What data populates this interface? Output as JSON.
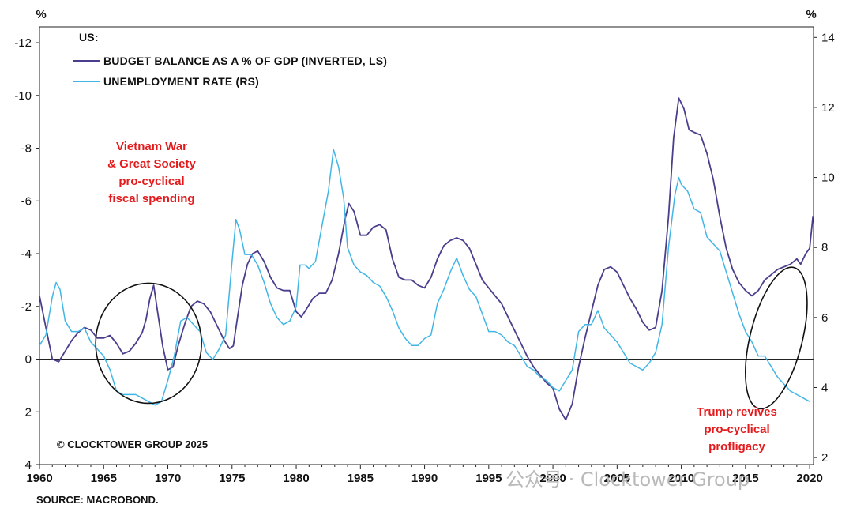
{
  "chart_data": {
    "type": "line",
    "title": "US:",
    "left_axis": {
      "unit": "%",
      "ylim": [
        4,
        -12.6
      ],
      "ticks": [
        -12,
        -10,
        -8,
        -6,
        -4,
        -2,
        0,
        2,
        4
      ],
      "inverted": true
    },
    "right_axis": {
      "unit": "%",
      "ylim": [
        1.8,
        14.3
      ],
      "ticks": [
        2,
        4,
        6,
        8,
        10,
        12,
        14
      ]
    },
    "x_axis": {
      "xlim": [
        1960,
        2020.3
      ],
      "ticks": [
        1960,
        1965,
        1970,
        1975,
        1980,
        1985,
        1990,
        1995,
        2000,
        2005,
        2010,
        2015,
        2020
      ]
    },
    "legend": {
      "placement": "top-left"
    },
    "series": [
      {
        "name": "BUDGET BALANCE AS A % OF GDP (INVERTED, LS)",
        "axis": "left",
        "color": "#4a3f8c",
        "points": [
          [
            1960,
            -2.4
          ],
          [
            1960.5,
            -1.2
          ],
          [
            1961,
            0
          ],
          [
            1961.5,
            0.1
          ],
          [
            1962,
            -0.3
          ],
          [
            1962.5,
            -0.7
          ],
          [
            1963,
            -1
          ],
          [
            1963.5,
            -1.2
          ],
          [
            1964,
            -1.1
          ],
          [
            1964.5,
            -0.8
          ],
          [
            1965,
            -0.8
          ],
          [
            1965.5,
            -0.9
          ],
          [
            1966,
            -0.6
          ],
          [
            1966.5,
            -0.2
          ],
          [
            1967,
            -0.3
          ],
          [
            1967.5,
            -0.6
          ],
          [
            1968,
            -1
          ],
          [
            1968.3,
            -1.5
          ],
          [
            1968.6,
            -2.3
          ],
          [
            1968.9,
            -2.8
          ],
          [
            1969.2,
            -1.8
          ],
          [
            1969.6,
            -0.5
          ],
          [
            1970,
            0.4
          ],
          [
            1970.4,
            0.3
          ],
          [
            1970.8,
            -0.5
          ],
          [
            1971.3,
            -1.3
          ],
          [
            1971.8,
            -2
          ],
          [
            1972.3,
            -2.2
          ],
          [
            1972.8,
            -2.1
          ],
          [
            1973.3,
            -1.8
          ],
          [
            1973.8,
            -1.3
          ],
          [
            1974.4,
            -0.7
          ],
          [
            1974.8,
            -0.4
          ],
          [
            1975.1,
            -0.5
          ],
          [
            1975.4,
            -1.5
          ],
          [
            1975.8,
            -2.8
          ],
          [
            1976.2,
            -3.6
          ],
          [
            1976.6,
            -4
          ],
          [
            1977,
            -4.1
          ],
          [
            1977.5,
            -3.7
          ],
          [
            1978,
            -3.1
          ],
          [
            1978.5,
            -2.7
          ],
          [
            1979,
            -2.6
          ],
          [
            1979.5,
            -2.6
          ],
          [
            1980,
            -1.8
          ],
          [
            1980.4,
            -1.6
          ],
          [
            1980.8,
            -1.9
          ],
          [
            1981.3,
            -2.3
          ],
          [
            1981.8,
            -2.5
          ],
          [
            1982.3,
            -2.5
          ],
          [
            1982.8,
            -3
          ],
          [
            1983.3,
            -4
          ],
          [
            1983.8,
            -5.3
          ],
          [
            1984.1,
            -5.9
          ],
          [
            1984.5,
            -5.6
          ],
          [
            1985,
            -4.7
          ],
          [
            1985.5,
            -4.7
          ],
          [
            1986,
            -5
          ],
          [
            1986.5,
            -5.1
          ],
          [
            1987,
            -4.9
          ],
          [
            1987.5,
            -3.8
          ],
          [
            1988,
            -3.1
          ],
          [
            1988.5,
            -3
          ],
          [
            1989,
            -3
          ],
          [
            1989.5,
            -2.8
          ],
          [
            1990,
            -2.7
          ],
          [
            1990.5,
            -3.1
          ],
          [
            1991,
            -3.8
          ],
          [
            1991.5,
            -4.3
          ],
          [
            1992,
            -4.5
          ],
          [
            1992.5,
            -4.6
          ],
          [
            1993,
            -4.5
          ],
          [
            1993.5,
            -4.2
          ],
          [
            1994,
            -3.6
          ],
          [
            1994.5,
            -3
          ],
          [
            1995,
            -2.7
          ],
          [
            1995.5,
            -2.4
          ],
          [
            1996,
            -2.1
          ],
          [
            1996.5,
            -1.6
          ],
          [
            1997,
            -1.1
          ],
          [
            1997.5,
            -0.6
          ],
          [
            1998,
            -0.1
          ],
          [
            1998.5,
            0.3
          ],
          [
            1999,
            0.6
          ],
          [
            1999.5,
            0.9
          ],
          [
            2000,
            1.1
          ],
          [
            2000.5,
            1.9
          ],
          [
            2001,
            2.3
          ],
          [
            2001.5,
            1.7
          ],
          [
            2002,
            0.3
          ],
          [
            2002.5,
            -0.8
          ],
          [
            2003,
            -1.8
          ],
          [
            2003.5,
            -2.8
          ],
          [
            2004,
            -3.4
          ],
          [
            2004.5,
            -3.5
          ],
          [
            2005,
            -3.3
          ],
          [
            2005.5,
            -2.8
          ],
          [
            2006,
            -2.3
          ],
          [
            2006.5,
            -1.9
          ],
          [
            2007,
            -1.4
          ],
          [
            2007.5,
            -1.1
          ],
          [
            2008,
            -1.2
          ],
          [
            2008.5,
            -2.6
          ],
          [
            2009,
            -5.4
          ],
          [
            2009.4,
            -8.4
          ],
          [
            2009.8,
            -9.9
          ],
          [
            2010.2,
            -9.5
          ],
          [
            2010.6,
            -8.7
          ],
          [
            2011,
            -8.6
          ],
          [
            2011.5,
            -8.5
          ],
          [
            2012,
            -7.8
          ],
          [
            2012.5,
            -6.8
          ],
          [
            2013,
            -5.4
          ],
          [
            2013.5,
            -4.2
          ],
          [
            2014,
            -3.4
          ],
          [
            2014.5,
            -2.9
          ],
          [
            2015,
            -2.6
          ],
          [
            2015.5,
            -2.4
          ],
          [
            2016,
            -2.6
          ],
          [
            2016.5,
            -3
          ],
          [
            2017,
            -3.2
          ],
          [
            2017.5,
            -3.4
          ],
          [
            2018,
            -3.5
          ],
          [
            2018.5,
            -3.6
          ],
          [
            2019,
            -3.8
          ],
          [
            2019.3,
            -3.6
          ],
          [
            2019.7,
            -4
          ],
          [
            2020,
            -4.2
          ],
          [
            2020.25,
            -5.4
          ]
        ]
      },
      {
        "name": "UNEMPLOYMENT RATE (RS)",
        "axis": "right",
        "color": "#41b6e6",
        "points": [
          [
            1960,
            5.2
          ],
          [
            1960.5,
            5.5
          ],
          [
            1961,
            6.6
          ],
          [
            1961.3,
            7
          ],
          [
            1961.6,
            6.8
          ],
          [
            1962,
            5.9
          ],
          [
            1962.5,
            5.6
          ],
          [
            1963,
            5.6
          ],
          [
            1963.5,
            5.7
          ],
          [
            1964,
            5.3
          ],
          [
            1964.5,
            5.1
          ],
          [
            1965,
            4.9
          ],
          [
            1965.5,
            4.5
          ],
          [
            1966,
            3.9
          ],
          [
            1966.5,
            3.8
          ],
          [
            1967,
            3.8
          ],
          [
            1967.5,
            3.8
          ],
          [
            1968,
            3.7
          ],
          [
            1968.5,
            3.6
          ],
          [
            1969,
            3.5
          ],
          [
            1969.5,
            3.6
          ],
          [
            1970,
            4.2
          ],
          [
            1970.5,
            4.9
          ],
          [
            1971,
            5.9
          ],
          [
            1971.5,
            6
          ],
          [
            1972,
            5.8
          ],
          [
            1972.5,
            5.6
          ],
          [
            1973,
            5
          ],
          [
            1973.5,
            4.8
          ],
          [
            1974,
            5.1
          ],
          [
            1974.5,
            5.5
          ],
          [
            1975,
            7.6
          ],
          [
            1975.3,
            8.8
          ],
          [
            1975.6,
            8.5
          ],
          [
            1976,
            7.8
          ],
          [
            1976.5,
            7.8
          ],
          [
            1977,
            7.5
          ],
          [
            1977.5,
            7
          ],
          [
            1978,
            6.4
          ],
          [
            1978.5,
            6
          ],
          [
            1979,
            5.8
          ],
          [
            1979.5,
            5.9
          ],
          [
            1980,
            6.3
          ],
          [
            1980.3,
            7.5
          ],
          [
            1980.7,
            7.5
          ],
          [
            1981,
            7.4
          ],
          [
            1981.5,
            7.6
          ],
          [
            1982,
            8.6
          ],
          [
            1982.5,
            9.6
          ],
          [
            1982.9,
            10.8
          ],
          [
            1983.3,
            10.3
          ],
          [
            1983.7,
            9.4
          ],
          [
            1984,
            8
          ],
          [
            1984.5,
            7.5
          ],
          [
            1985,
            7.3
          ],
          [
            1985.5,
            7.2
          ],
          [
            1986,
            7
          ],
          [
            1986.5,
            6.9
          ],
          [
            1987,
            6.6
          ],
          [
            1987.5,
            6.2
          ],
          [
            1988,
            5.7
          ],
          [
            1988.5,
            5.4
          ],
          [
            1989,
            5.2
          ],
          [
            1989.5,
            5.2
          ],
          [
            1990,
            5.4
          ],
          [
            1990.5,
            5.5
          ],
          [
            1991,
            6.4
          ],
          [
            1991.5,
            6.8
          ],
          [
            1992,
            7.3
          ],
          [
            1992.5,
            7.7
          ],
          [
            1993,
            7.2
          ],
          [
            1993.5,
            6.8
          ],
          [
            1994,
            6.6
          ],
          [
            1994.5,
            6.1
          ],
          [
            1995,
            5.6
          ],
          [
            1995.5,
            5.6
          ],
          [
            1996,
            5.5
          ],
          [
            1996.5,
            5.3
          ],
          [
            1997,
            5.2
          ],
          [
            1997.5,
            4.9
          ],
          [
            1998,
            4.6
          ],
          [
            1998.5,
            4.5
          ],
          [
            1999,
            4.3
          ],
          [
            1999.5,
            4.2
          ],
          [
            2000,
            4
          ],
          [
            2000.5,
            3.9
          ],
          [
            2001,
            4.2
          ],
          [
            2001.5,
            4.5
          ],
          [
            2002,
            5.6
          ],
          [
            2002.5,
            5.8
          ],
          [
            2003,
            5.8
          ],
          [
            2003.5,
            6.2
          ],
          [
            2004,
            5.7
          ],
          [
            2004.5,
            5.5
          ],
          [
            2005,
            5.3
          ],
          [
            2005.5,
            5
          ],
          [
            2006,
            4.7
          ],
          [
            2006.5,
            4.6
          ],
          [
            2007,
            4.5
          ],
          [
            2007.5,
            4.7
          ],
          [
            2008,
            5
          ],
          [
            2008.5,
            5.8
          ],
          [
            2009,
            8
          ],
          [
            2009.5,
            9.5
          ],
          [
            2009.8,
            10
          ],
          [
            2010,
            9.8
          ],
          [
            2010.5,
            9.6
          ],
          [
            2011,
            9.1
          ],
          [
            2011.5,
            9
          ],
          [
            2012,
            8.3
          ],
          [
            2012.5,
            8.1
          ],
          [
            2013,
            7.9
          ],
          [
            2013.5,
            7.3
          ],
          [
            2014,
            6.7
          ],
          [
            2014.5,
            6.1
          ],
          [
            2015,
            5.6
          ],
          [
            2015.5,
            5.3
          ],
          [
            2016,
            4.9
          ],
          [
            2016.5,
            4.9
          ],
          [
            2017,
            4.6
          ],
          [
            2017.5,
            4.3
          ],
          [
            2018,
            4.1
          ],
          [
            2018.5,
            3.9
          ],
          [
            2019,
            3.8
          ],
          [
            2019.5,
            3.7
          ],
          [
            2020,
            3.6
          ]
        ]
      }
    ],
    "annotations": [
      {
        "lines": [
          "Vietnam War",
          "& Great Society",
          "pro-cyclical",
          "fiscal spending"
        ],
        "color": "#e41a1c"
      },
      {
        "lines": [
          "Trump revives",
          "pro-cyclical",
          "profligacy"
        ],
        "color": "#e41a1c"
      }
    ],
    "highlight_circles": [
      {
        "x_center": 1968.5,
        "y_center_left": -0.6
      },
      {
        "x_center": 2017.4,
        "y_center_left": -0.8
      }
    ],
    "copyright": "© CLOCKTOWER GROUP 2025",
    "source": "SOURCE: MACROBOND.",
    "watermark": "公众号 · Clocktower Group"
  }
}
